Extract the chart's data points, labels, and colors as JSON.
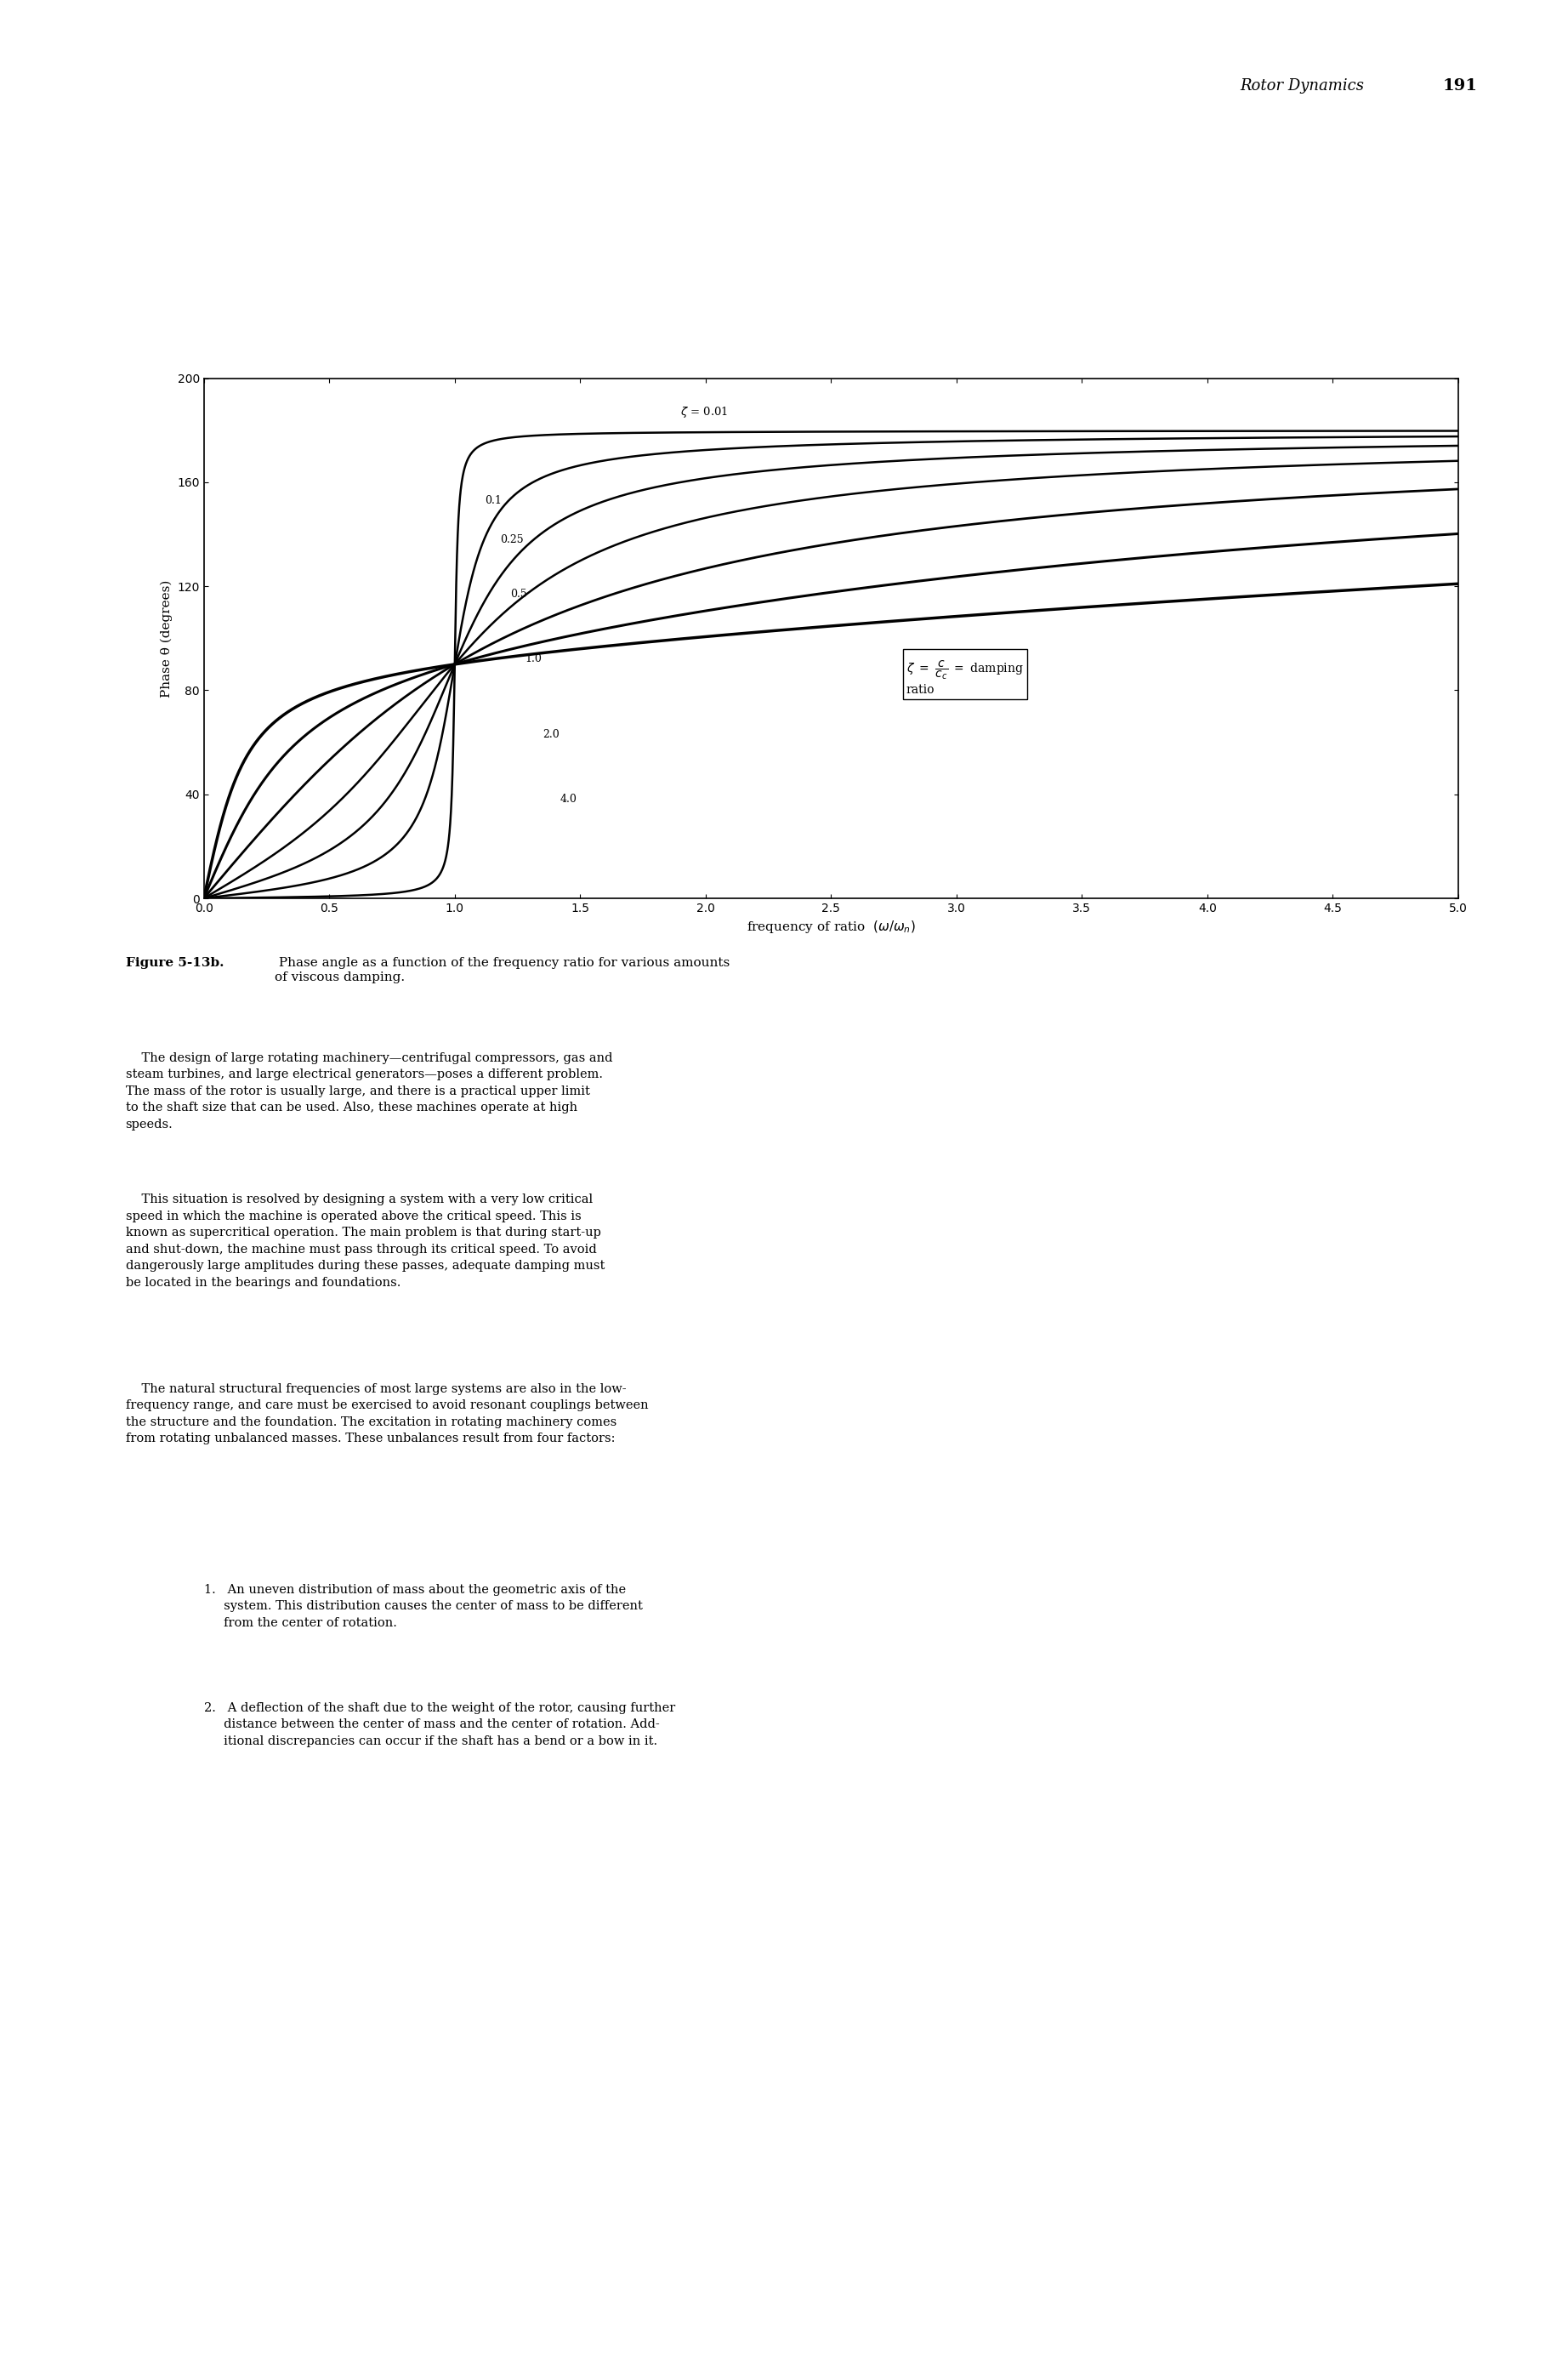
{
  "title": "Figure 5-13b. Phase angle as a function of the frequency ratio for various amounts of viscous damping.",
  "header_text": "Rotor Dynamics",
  "header_page": "191",
  "xlabel": "frequency of ratio",
  "xlabel_math": "(ω/ω_n)",
  "ylabel": "Phase θ (degrees)",
  "damping_ratios": [
    0.01,
    0.1,
    0.25,
    0.5,
    1.0,
    2.0,
    4.0
  ],
  "damping_labels": [
    "0.01",
    "0.1",
    "0.25",
    "0.5",
    "1.0",
    "2.0",
    "4.0"
  ],
  "zeta_label": "ζ = 0.01",
  "xlim": [
    0,
    5.0
  ],
  "ylim": [
    0,
    200
  ],
  "xticks": [
    0,
    0.5,
    1.0,
    1.5,
    2.0,
    2.5,
    3.0,
    3.5,
    4.0,
    4.5,
    5.0
  ],
  "yticks": [
    0,
    40,
    80,
    120,
    160,
    200
  ],
  "annotation_text": "ζ = c/c_c = damping ratio",
  "background_color": "#ffffff",
  "line_color": "#000000",
  "fig_caption_bold": "Figure 5-13b.",
  "fig_caption_normal": " Phase angle as a function of the frequency ratio for various amounts of viscous damping."
}
